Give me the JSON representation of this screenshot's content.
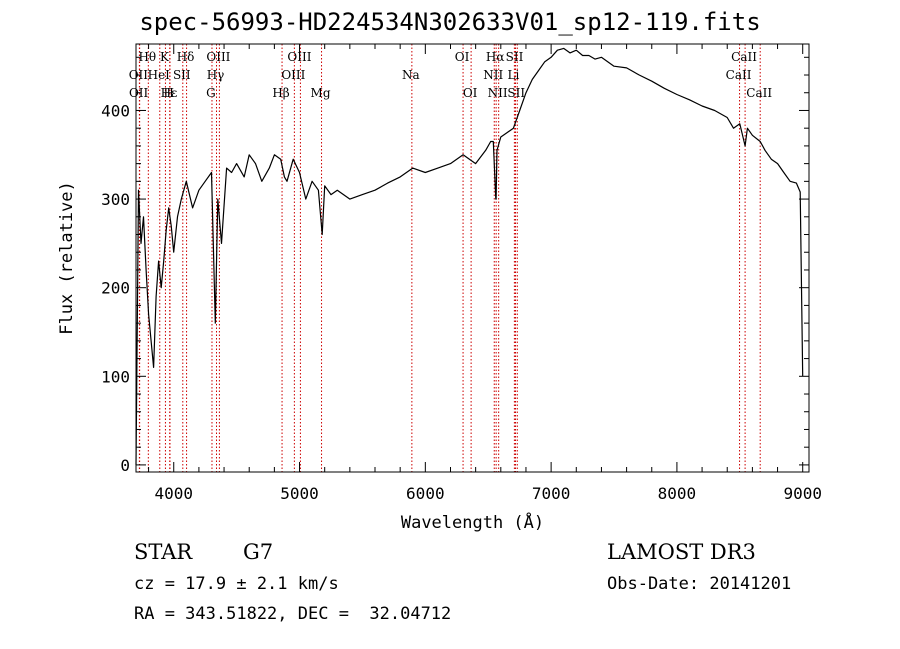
{
  "chart_data": {
    "type": "line",
    "title": "spec-56993-HD224534N302633V01_sp12-119.fits",
    "xlabel": "Wavelength (Å)",
    "ylabel": "Flux (relative)",
    "xlim": [
      3700,
      9050
    ],
    "ylim": [
      -8,
      475
    ],
    "xticks": [
      4000,
      5000,
      6000,
      7000,
      8000,
      9000
    ],
    "yticks": [
      0,
      100,
      200,
      300,
      400
    ],
    "grid": false,
    "series": [
      {
        "name": "flux",
        "x": [
          3700,
          3720,
          3740,
          3760,
          3780,
          3800,
          3820,
          3840,
          3860,
          3880,
          3900,
          3920,
          3940,
          3960,
          3980,
          4000,
          4030,
          4060,
          4100,
          4150,
          4200,
          4250,
          4300,
          4330,
          4350,
          4380,
          4420,
          4460,
          4500,
          4560,
          4600,
          4650,
          4700,
          4760,
          4800,
          4850,
          4880,
          4900,
          4950,
          5000,
          5050,
          5100,
          5150,
          5180,
          5200,
          5250,
          5300,
          5400,
          5500,
          5600,
          5700,
          5800,
          5900,
          6000,
          6100,
          6200,
          6300,
          6400,
          6480,
          6520,
          6540,
          6560,
          6563,
          6570,
          6600,
          6650,
          6700,
          6750,
          6800,
          6850,
          6900,
          6950,
          7000,
          7050,
          7100,
          7150,
          7200,
          7250,
          7300,
          7350,
          7400,
          7500,
          7600,
          7700,
          7800,
          7900,
          8000,
          8100,
          8200,
          8300,
          8400,
          8450,
          8500,
          8542,
          8560,
          8600,
          8662,
          8700,
          8750,
          8800,
          8850,
          8900,
          8950,
          8980,
          9000
        ],
        "values": [
          0,
          310,
          250,
          280,
          220,
          170,
          140,
          110,
          190,
          230,
          200,
          230,
          265,
          290,
          270,
          240,
          280,
          300,
          320,
          290,
          310,
          320,
          330,
          160,
          300,
          250,
          335,
          330,
          340,
          325,
          350,
          340,
          320,
          335,
          350,
          345,
          325,
          320,
          345,
          330,
          300,
          320,
          310,
          260,
          315,
          305,
          310,
          300,
          305,
          310,
          318,
          325,
          335,
          330,
          335,
          340,
          350,
          340,
          355,
          365,
          365,
          300,
          300,
          355,
          370,
          375,
          380,
          400,
          420,
          435,
          445,
          455,
          460,
          468,
          470,
          465,
          468,
          462,
          462,
          458,
          460,
          450,
          448,
          440,
          433,
          425,
          418,
          412,
          405,
          400,
          392,
          380,
          385,
          360,
          380,
          372,
          365,
          355,
          345,
          340,
          330,
          320,
          318,
          308,
          100
        ]
      }
    ],
    "line_markers": [
      {
        "label": "Hθ",
        "x": 3798,
        "row": 1
      },
      {
        "label": "K",
        "x": 3934,
        "row": 1
      },
      {
        "label": "Hδ",
        "x": 4102,
        "row": 1
      },
      {
        "label": "OIII",
        "x": 4363,
        "row": 1
      },
      {
        "label": "OIII",
        "x": 5007,
        "row": 1
      },
      {
        "label": "OI",
        "x": 6300,
        "row": 1
      },
      {
        "label": "Hα",
        "x": 6563,
        "row": 1
      },
      {
        "label": "SII",
        "x": 6717,
        "row": 1
      },
      {
        "label": "CaII",
        "x": 8542,
        "row": 1
      },
      {
        "label": "OII",
        "x": 3727,
        "row": 2
      },
      {
        "label": "HeI",
        "x": 3889,
        "row": 2
      },
      {
        "label": "SII",
        "x": 4072,
        "row": 2
      },
      {
        "label": "Hγ",
        "x": 4340,
        "row": 2
      },
      {
        "label": "OIII",
        "x": 4959,
        "row": 2
      },
      {
        "label": "Na",
        "x": 5893,
        "row": 2
      },
      {
        "label": "NII",
        "x": 6548,
        "row": 2
      },
      {
        "label": "Li",
        "x": 6708,
        "row": 2
      },
      {
        "label": "CaII",
        "x": 8498,
        "row": 2
      },
      {
        "label": "OII",
        "x": 3729,
        "row": 3
      },
      {
        "label": "Hε",
        "x": 3970,
        "row": 3
      },
      {
        "label": "H",
        "x": 3968,
        "row": 3
      },
      {
        "label": "G",
        "x": 4304,
        "row": 3
      },
      {
        "label": "Hβ",
        "x": 4861,
        "row": 3
      },
      {
        "label": "Mg",
        "x": 5175,
        "row": 3
      },
      {
        "label": "OI",
        "x": 6364,
        "row": 3
      },
      {
        "label": "NII",
        "x": 6583,
        "row": 3
      },
      {
        "label": "SII",
        "x": 6731,
        "row": 3
      },
      {
        "label": "CaII",
        "x": 8662,
        "row": 3
      }
    ],
    "marker_color": "#cc0000"
  },
  "info": {
    "class": "STAR",
    "subclass": "G7",
    "survey": "LAMOST DR3",
    "cz": "cz = 17.9 ± 2.1 km/s",
    "obs_date": "Obs-Date: 20141201",
    "coords": "RA = 343.51822, DEC =  32.04712"
  }
}
